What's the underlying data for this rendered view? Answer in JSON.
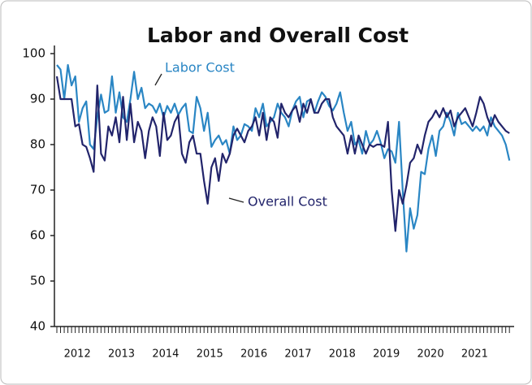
{
  "chart_data": {
    "type": "line",
    "title": "Labor and Overall Cost",
    "categories": [
      null,
      null,
      null,
      null,
      null,
      null,
      "2012",
      null,
      null,
      null,
      null,
      null,
      null,
      null,
      null,
      null,
      null,
      null,
      "2013",
      null,
      null,
      null,
      null,
      null,
      null,
      null,
      null,
      null,
      null,
      null,
      "2014",
      null,
      null,
      null,
      null,
      null,
      null,
      null,
      null,
      null,
      null,
      null,
      "2015",
      null,
      null,
      null,
      null,
      null,
      null,
      null,
      null,
      null,
      null,
      null,
      "2016",
      null,
      null,
      null,
      null,
      null,
      null,
      null,
      null,
      null,
      null,
      null,
      "2017",
      null,
      null,
      null,
      null,
      null,
      null,
      null,
      null,
      null,
      null,
      null,
      "2018",
      null,
      null,
      null,
      null,
      null,
      null,
      null,
      null,
      null,
      null,
      null,
      "2019",
      null,
      null,
      null,
      null,
      null,
      null,
      null,
      null,
      null,
      null,
      null,
      "2020",
      null,
      null,
      null,
      null,
      null,
      null,
      null,
      null,
      null,
      null,
      null,
      "2021",
      null,
      null,
      null,
      null,
      null,
      null,
      null,
      null,
      null
    ],
    "series": [
      {
        "name": "Labor Cost",
        "color": "#2a86c4",
        "values": [
          97.5,
          96.5,
          90,
          97.5,
          93,
          95,
          85,
          88,
          89.5,
          80,
          79,
          86,
          91,
          87,
          87.5,
          95,
          87,
          91.5,
          86,
          85,
          90,
          96,
          90,
          92.5,
          88,
          89,
          88.5,
          87,
          89,
          86,
          88.5,
          87,
          89,
          86.5,
          88,
          89,
          83,
          82.5,
          90.5,
          88,
          83,
          87,
          79.5,
          81,
          82,
          80,
          81,
          78,
          84,
          81,
          82,
          84.5,
          84,
          83,
          88,
          86,
          89,
          84,
          85,
          86,
          89,
          87,
          86,
          84,
          87.5,
          89.5,
          90.5,
          86,
          89.5,
          90,
          87,
          89.5,
          91.5,
          90.5,
          88.5,
          87.5,
          89,
          91.5,
          87,
          83,
          85,
          80,
          81,
          78,
          83,
          80,
          81,
          83,
          80.5,
          77,
          79,
          78.5,
          76,
          85,
          70,
          56.5,
          66,
          61.5,
          64.5,
          74,
          73.5,
          79,
          82,
          77.5,
          83,
          84,
          87,
          85,
          82,
          87,
          84.5,
          85,
          84,
          83,
          84,
          83,
          84,
          82,
          86,
          84,
          83,
          82,
          80,
          76.5
        ]
      },
      {
        "name": "Overall Cost",
        "color": "#22246b",
        "values": [
          95,
          90,
          90,
          90,
          90,
          84,
          84.5,
          80,
          79.5,
          77,
          74,
          93,
          78,
          76.5,
          84,
          82,
          86,
          80.5,
          90.5,
          81,
          89,
          80.5,
          85,
          83,
          77,
          83,
          86,
          84,
          77.5,
          87,
          81,
          82,
          85,
          86.5,
          78,
          76,
          80.5,
          82,
          78,
          78,
          72,
          67,
          75,
          77,
          72,
          78,
          76,
          78,
          82,
          83.5,
          82,
          80.5,
          83,
          84,
          86,
          82,
          87,
          81,
          86,
          85,
          81.5,
          89,
          87,
          86,
          87.5,
          88.5,
          85,
          89,
          87,
          90,
          87,
          87,
          89,
          90,
          90,
          86,
          84,
          83,
          82,
          78,
          82,
          78,
          82,
          80,
          78,
          80,
          79.5,
          80,
          80,
          79.5,
          85,
          70,
          61,
          70,
          67,
          71,
          76,
          77,
          80,
          78,
          82,
          85,
          86,
          87.5,
          86,
          88,
          86,
          87.5,
          84,
          86,
          87,
          88,
          86,
          84,
          87,
          90.5,
          89,
          86,
          84,
          86.5,
          85,
          84,
          83,
          82.5
        ]
      }
    ],
    "ylim": [
      40,
      100
    ],
    "yticks": [
      40,
      50,
      60,
      70,
      80,
      90,
      100
    ]
  }
}
